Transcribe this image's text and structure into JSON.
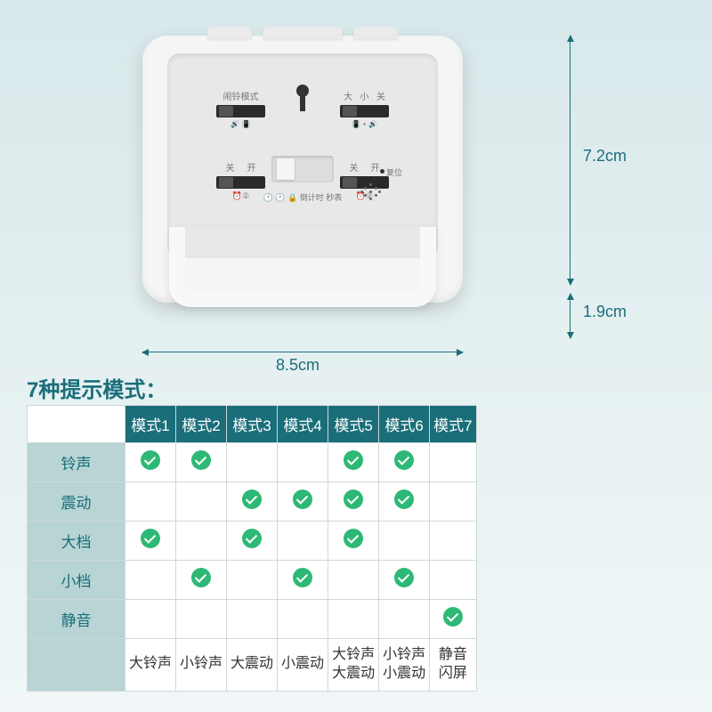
{
  "dimensions": {
    "height": "7.2cm",
    "depth": "1.9cm",
    "width": "8.5cm"
  },
  "device_labels": {
    "alarm_mode": "闹铃模式",
    "small": "小",
    "big": "大",
    "off": "关",
    "on": "开",
    "countdown": "倒计时",
    "stopwatch": "秒表",
    "reset": "复位"
  },
  "table": {
    "title": "7种提示模式：",
    "mode_header_prefix": "模式",
    "columns": [
      "模式1",
      "模式2",
      "模式3",
      "模式4",
      "模式5",
      "模式6",
      "模式7"
    ],
    "rows": [
      {
        "label": "铃声",
        "checks": [
          true,
          true,
          false,
          false,
          true,
          true,
          false
        ]
      },
      {
        "label": "震动",
        "checks": [
          false,
          false,
          true,
          true,
          true,
          true,
          false
        ]
      },
      {
        "label": "大档",
        "checks": [
          true,
          false,
          true,
          false,
          true,
          false,
          false
        ]
      },
      {
        "label": "小档",
        "checks": [
          false,
          true,
          false,
          true,
          false,
          true,
          false
        ]
      },
      {
        "label": "静音",
        "checks": [
          false,
          false,
          false,
          false,
          false,
          false,
          true
        ]
      }
    ],
    "footer": [
      "大铃声",
      "小铃声",
      "大震动",
      "小震动",
      "大铃声\n大震动",
      "小铃声\n小震动",
      "静音\n闪屏"
    ],
    "colors": {
      "header_bg": "#1a6e7a",
      "header_text": "#ffffff",
      "row_header_bg": "#b8d4d4",
      "row_header_text": "#1a6e7a",
      "border": "#d0d8d8",
      "check_bg": "#2eb876",
      "title_color": "#1a6e7a"
    }
  }
}
